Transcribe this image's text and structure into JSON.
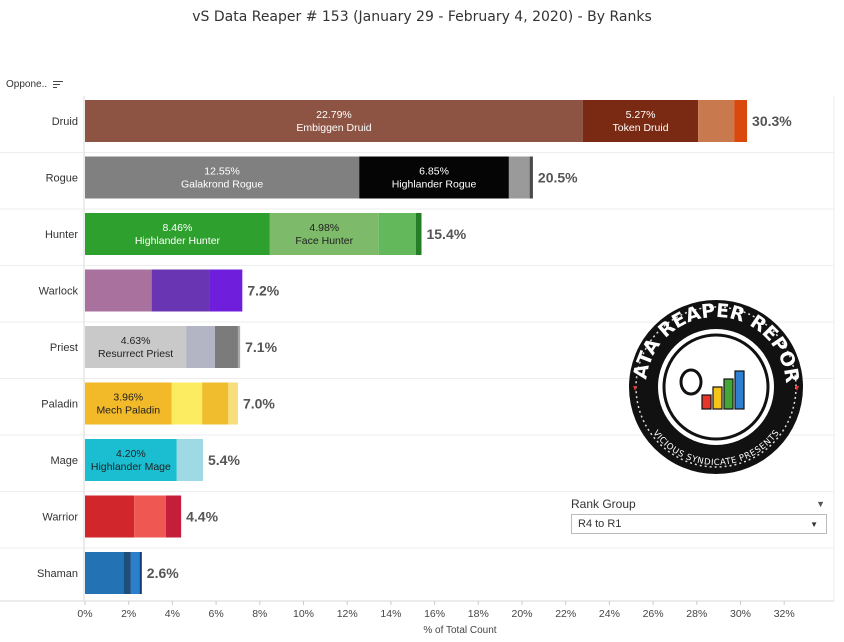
{
  "title": "vS Data Reaper #  153 (January 29 - February 4, 2020) - By Ranks",
  "filter": {
    "label": "Oppone.."
  },
  "rank_group": {
    "label": "Rank Group",
    "selected": "R4 to R1"
  },
  "logo": {
    "text_top": "DATA REAPER REPORT",
    "text_bottom": "VICIOUS SYNDICATE PRESENTS",
    "colors": [
      "#e8352b",
      "#f6c319",
      "#43a838",
      "#2f7fd3"
    ]
  },
  "chart_data": {
    "type": "bar",
    "orientation": "horizontal",
    "stacked": true,
    "xlabel": "% of Total Count",
    "xlim": [
      0,
      32
    ],
    "xticks": [
      "0%",
      "2%",
      "4%",
      "6%",
      "8%",
      "10%",
      "12%",
      "14%",
      "16%",
      "18%",
      "20%",
      "22%",
      "24%",
      "26%",
      "28%",
      "30%",
      "32%"
    ],
    "grid": false,
    "categories": [
      "Druid",
      "Rogue",
      "Hunter",
      "Warlock",
      "Priest",
      "Paladin",
      "Mage",
      "Warrior",
      "Shaman"
    ],
    "totals": [
      "30.3%",
      "20.5%",
      "15.4%",
      "7.2%",
      "7.1%",
      "7.0%",
      "5.4%",
      "4.4%",
      "2.6%"
    ],
    "bars": [
      {
        "class": "Druid",
        "segments": [
          {
            "value": 22.79,
            "color": "#8d5444",
            "label_pct": "22.79%",
            "label_name": "Embiggen Druid",
            "text_color": "#ffffff"
          },
          {
            "value": 5.27,
            "color": "#7a2a12",
            "label_pct": "5.27%",
            "label_name": "Token Druid",
            "text_color": "#ffffff"
          },
          {
            "value": 1.65,
            "color": "#c8794e"
          },
          {
            "value": 0.59,
            "color": "#d9480c"
          }
        ]
      },
      {
        "class": "Rogue",
        "segments": [
          {
            "value": 12.55,
            "color": "#808080",
            "label_pct": "12.55%",
            "label_name": "Galakrond Rogue",
            "text_color": "#ffffff"
          },
          {
            "value": 6.85,
            "color": "#050505",
            "label_pct": "6.85%",
            "label_name": "Highlander Rogue",
            "text_color": "#ffffff"
          },
          {
            "value": 0.95,
            "color": "#9a9a9a"
          },
          {
            "value": 0.15,
            "color": "#4a4a4a"
          }
        ]
      },
      {
        "class": "Hunter",
        "segments": [
          {
            "value": 8.46,
            "color": "#2ea02e",
            "label_pct": "8.46%",
            "label_name": "Highlander Hunter",
            "text_color": "#ffffff"
          },
          {
            "value": 4.98,
            "color": "#7dba6a",
            "label_pct": "4.98%",
            "label_name": "Face Hunter",
            "text_color": "#222222"
          },
          {
            "value": 1.7,
            "color": "#64b85c"
          },
          {
            "value": 0.26,
            "color": "#257d25"
          }
        ]
      },
      {
        "class": "Warlock",
        "segments": [
          {
            "value": 3.05,
            "color": "#a8719e"
          },
          {
            "value": 2.65,
            "color": "#6a35b3"
          },
          {
            "value": 1.5,
            "color": "#6f1fdc"
          }
        ]
      },
      {
        "class": "Priest",
        "segments": [
          {
            "value": 4.63,
            "color": "#c9c9c9",
            "label_pct": "4.63%",
            "label_name": "Resurrect Priest",
            "text_color": "#222222"
          },
          {
            "value": 1.32,
            "color": "#b4b5c4"
          },
          {
            "value": 1.05,
            "color": "#7b7b7b"
          },
          {
            "value": 0.1,
            "color": "#a9a9a9"
          }
        ]
      },
      {
        "class": "Paladin",
        "segments": [
          {
            "value": 3.96,
            "color": "#f2b929",
            "label_pct": "3.96%",
            "label_name": "Mech Paladin",
            "text_color": "#222222"
          },
          {
            "value": 1.4,
            "color": "#fbec62"
          },
          {
            "value": 1.2,
            "color": "#f0bd2e"
          },
          {
            "value": 0.44,
            "color": "#f6de7a"
          }
        ]
      },
      {
        "class": "Mage",
        "segments": [
          {
            "value": 4.2,
            "color": "#1bbdd0",
            "label_pct": "4.20%",
            "label_name": "Highlander Mage",
            "text_color": "#222222"
          },
          {
            "value": 1.2,
            "color": "#9fd9e3"
          }
        ]
      },
      {
        "class": "Warrior",
        "segments": [
          {
            "value": 2.25,
            "color": "#d1262c"
          },
          {
            "value": 1.45,
            "color": "#ef5752"
          },
          {
            "value": 0.7,
            "color": "#c41e3a"
          }
        ]
      },
      {
        "class": "Shaman",
        "segments": [
          {
            "value": 1.75,
            "color": "#2373b4"
          },
          {
            "value": 0.35,
            "color": "#1d4e7c"
          },
          {
            "value": 0.4,
            "color": "#2b7fcf"
          },
          {
            "value": 0.1,
            "color": "#123a6e"
          }
        ]
      }
    ]
  }
}
